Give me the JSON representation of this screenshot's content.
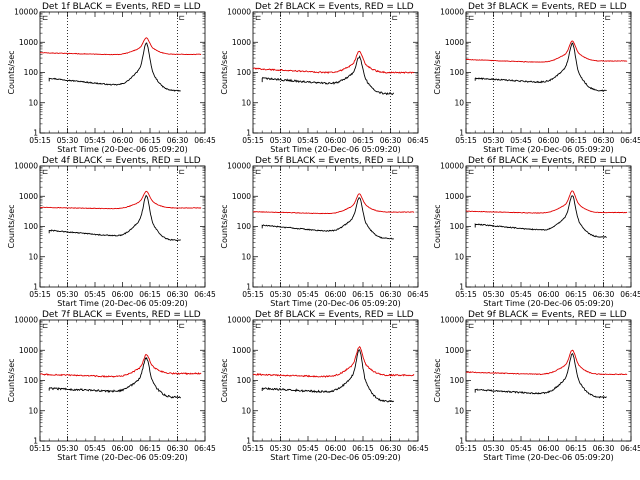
{
  "colors": {
    "events": "#000000",
    "lld": "#e00000",
    "background": "#ffffff"
  },
  "shared": {
    "xlabel": "Start Time (20-Dec-06 05:09:20)",
    "ylabel": "Counts/sec",
    "xtick_labels": [
      "05:15",
      "05:30",
      "05:45",
      "06:00",
      "06:15",
      "06:30",
      "06:45"
    ],
    "xtick_minutes": [
      0,
      15,
      30,
      45,
      60,
      75,
      90
    ],
    "ytick_labels": [
      "1",
      "10",
      "100",
      "1000",
      "10000"
    ],
    "ytick_values": [
      1,
      10,
      100,
      1000,
      10000
    ],
    "ylim": [
      1,
      10000
    ],
    "xlim_minutes": [
      0,
      90
    ],
    "dotted_vlines_minutes": [
      15,
      75
    ],
    "corner_markers": [
      "⊏",
      "⊏"
    ]
  },
  "chart_data": [
    {
      "type": "line",
      "title": "Det 1f BLACK = Events, RED = LLD",
      "series": [
        {
          "name": "Events",
          "color": "#000000",
          "start": 5,
          "end": 77,
          "base": 65,
          "floor_mid": 35,
          "peak": 950,
          "peak_at": 58,
          "tail_end": 25,
          "noise": 0.04
        },
        {
          "name": "LLD",
          "color": "#e00000",
          "start": 0,
          "end": 88,
          "base": 450,
          "floor_mid": 380,
          "peak": 1400,
          "peak_at": 58,
          "tail_end": 400,
          "noise": 0.02
        }
      ]
    },
    {
      "type": "line",
      "title": "Det 2f BLACK = Events, RED = LLD",
      "series": [
        {
          "name": "Events",
          "color": "#000000",
          "start": 5,
          "end": 77,
          "base": 65,
          "floor_mid": 40,
          "peak": 330,
          "peak_at": 58,
          "tail_end": 20,
          "noise": 0.07
        },
        {
          "name": "LLD",
          "color": "#e00000",
          "start": 0,
          "end": 88,
          "base": 135,
          "floor_mid": 95,
          "peak": 500,
          "peak_at": 58,
          "tail_end": 100,
          "noise": 0.05
        }
      ]
    },
    {
      "type": "line",
      "title": "Det 3f BLACK = Events, RED = LLD",
      "series": [
        {
          "name": "Events",
          "color": "#000000",
          "start": 5,
          "end": 77,
          "base": 65,
          "floor_mid": 45,
          "peak": 900,
          "peak_at": 58,
          "tail_end": 25,
          "noise": 0.05
        },
        {
          "name": "LLD",
          "color": "#e00000",
          "start": 0,
          "end": 88,
          "base": 270,
          "floor_mid": 210,
          "peak": 1100,
          "peak_at": 58,
          "tail_end": 240,
          "noise": 0.02
        }
      ]
    },
    {
      "type": "line",
      "title": "Det 4f BLACK = Events, RED = LLD",
      "series": [
        {
          "name": "Events",
          "color": "#000000",
          "start": 5,
          "end": 77,
          "base": 75,
          "floor_mid": 45,
          "peak": 1050,
          "peak_at": 58,
          "tail_end": 35,
          "noise": 0.04
        },
        {
          "name": "LLD",
          "color": "#e00000",
          "start": 0,
          "end": 88,
          "base": 430,
          "floor_mid": 380,
          "peak": 1450,
          "peak_at": 58,
          "tail_end": 410,
          "noise": 0.02
        }
      ]
    },
    {
      "type": "line",
      "title": "Det 5f BLACK = Events, RED = LLD",
      "series": [
        {
          "name": "Events",
          "color": "#000000",
          "start": 5,
          "end": 77,
          "base": 110,
          "floor_mid": 65,
          "peak": 900,
          "peak_at": 58,
          "tail_end": 40,
          "noise": 0.04
        },
        {
          "name": "LLD",
          "color": "#e00000",
          "start": 0,
          "end": 88,
          "base": 310,
          "floor_mid": 260,
          "peak": 1200,
          "peak_at": 58,
          "tail_end": 300,
          "noise": 0.02
        }
      ]
    },
    {
      "type": "line",
      "title": "Det 6f BLACK = Events, RED = LLD",
      "series": [
        {
          "name": "Events",
          "color": "#000000",
          "start": 5,
          "end": 77,
          "base": 120,
          "floor_mid": 70,
          "peak": 1050,
          "peak_at": 58,
          "tail_end": 45,
          "noise": 0.04
        },
        {
          "name": "LLD",
          "color": "#e00000",
          "start": 0,
          "end": 88,
          "base": 320,
          "floor_mid": 270,
          "peak": 1500,
          "peak_at": 58,
          "tail_end": 290,
          "noise": 0.02
        }
      ]
    },
    {
      "type": "line",
      "title": "Det 7f BLACK = Events, RED = LLD",
      "series": [
        {
          "name": "Events",
          "color": "#000000",
          "start": 5,
          "end": 77,
          "base": 55,
          "floor_mid": 42,
          "peak": 560,
          "peak_at": 58,
          "tail_end": 28,
          "noise": 0.07
        },
        {
          "name": "LLD",
          "color": "#e00000",
          "start": 0,
          "end": 88,
          "base": 160,
          "floor_mid": 130,
          "peak": 700,
          "peak_at": 58,
          "tail_end": 170,
          "noise": 0.05
        }
      ]
    },
    {
      "type": "line",
      "title": "Det 8f BLACK = Events, RED = LLD",
      "series": [
        {
          "name": "Events",
          "color": "#000000",
          "start": 5,
          "end": 77,
          "base": 55,
          "floor_mid": 40,
          "peak": 1000,
          "peak_at": 58,
          "tail_end": 20,
          "noise": 0.07
        },
        {
          "name": "LLD",
          "color": "#e00000",
          "start": 0,
          "end": 88,
          "base": 160,
          "floor_mid": 130,
          "peak": 1300,
          "peak_at": 58,
          "tail_end": 150,
          "noise": 0.05
        }
      ]
    },
    {
      "type": "line",
      "title": "Det 9f BLACK = Events, RED = LLD",
      "series": [
        {
          "name": "Events",
          "color": "#000000",
          "start": 5,
          "end": 77,
          "base": 50,
          "floor_mid": 35,
          "peak": 750,
          "peak_at": 58,
          "tail_end": 28,
          "noise": 0.05
        },
        {
          "name": "LLD",
          "color": "#e00000",
          "start": 0,
          "end": 88,
          "base": 190,
          "floor_mid": 155,
          "peak": 1000,
          "peak_at": 58,
          "tail_end": 160,
          "noise": 0.03
        }
      ]
    }
  ]
}
